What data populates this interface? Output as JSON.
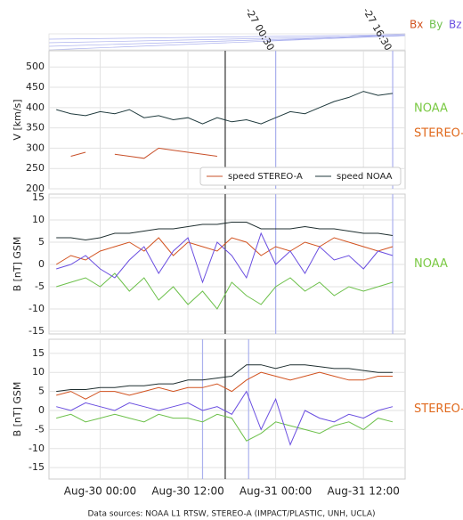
{
  "chart_data": [
    {
      "type": "line",
      "y_label": "V [km/s]",
      "side_label": "NOAA",
      "side_label2": "STEREO-A",
      "x": [
        -6,
        -4,
        -2,
        0,
        2,
        4,
        6,
        8,
        10,
        12,
        14,
        16,
        18,
        20,
        22,
        24,
        26,
        28,
        30,
        32,
        34,
        36,
        38,
        40
      ],
      "xlim": [
        -7,
        41.7
      ],
      "xticks": [
        0,
        12,
        24,
        36
      ],
      "ylim": [
        200,
        540
      ],
      "yticks": [
        200,
        250,
        300,
        350,
        400,
        450,
        500
      ],
      "grid": true,
      "legend": "lower right",
      "series": [
        {
          "name": "speed STEREO-A",
          "color": "#c8502a",
          "values": [
            null,
            280,
            290,
            null,
            285,
            280,
            275,
            300,
            295,
            290,
            285,
            280,
            null,
            null,
            null,
            null,
            null,
            null,
            null,
            null,
            null,
            null,
            null,
            null
          ]
        },
        {
          "name": "speed NOAA",
          "color": "#1f3a3d",
          "values": [
            395,
            385,
            380,
            390,
            385,
            395,
            375,
            380,
            370,
            375,
            360,
            375,
            365,
            370,
            360,
            375,
            390,
            385,
            400,
            415,
            425,
            440,
            430,
            435
          ]
        }
      ],
      "vlines": [
        {
          "x": 17.1,
          "color": "#333333"
        },
        {
          "x": 24,
          "color": "#aab0ee"
        },
        {
          "x": 40,
          "color": "#aab0ee"
        }
      ]
    },
    {
      "type": "line",
      "y_label": "B [nT] GSM",
      "side_label": "NOAA",
      "x": [
        -6,
        -4,
        -2,
        0,
        2,
        4,
        6,
        8,
        10,
        12,
        14,
        16,
        18,
        20,
        22,
        24,
        26,
        28,
        30,
        32,
        34,
        36,
        38,
        40
      ],
      "xlim": [
        -7,
        41.7
      ],
      "xticks": [
        0,
        12,
        24,
        36
      ],
      "ylim": [
        -15.6,
        15.8
      ],
      "yticks": [
        -15,
        -10,
        -5,
        0,
        5,
        10,
        15
      ],
      "grid": true,
      "legend": "top right",
      "series": [
        {
          "color": "#1f2f30",
          "values": [
            6,
            6,
            5.5,
            6,
            7,
            7,
            7.5,
            8,
            8,
            8.5,
            9,
            9,
            9.5,
            9.5,
            8,
            8,
            8,
            8.5,
            8,
            8,
            7.5,
            7,
            7,
            6.5
          ]
        },
        {
          "name": "Bx",
          "color": "#d2521f",
          "values": [
            0,
            2,
            1,
            3,
            4,
            5,
            3,
            6,
            2,
            5,
            4,
            3,
            6,
            5,
            2,
            4,
            3,
            5,
            4,
            6,
            5,
            4,
            3,
            4
          ]
        },
        {
          "name": "By",
          "color": "#6cc04a",
          "values": [
            -5,
            -4,
            -3,
            -5,
            -2,
            -6,
            -3,
            -8,
            -5,
            -9,
            -6,
            -10,
            -4,
            -7,
            -9,
            -5,
            -3,
            -6,
            -4,
            -7,
            -5,
            -6,
            -5,
            -4
          ]
        },
        {
          "name": "Bz",
          "color": "#6a4ee0",
          "values": [
            -1,
            0,
            2,
            -1,
            -3,
            1,
            4,
            -2,
            3,
            6,
            -4,
            5,
            2,
            -3,
            7,
            0,
            3,
            -2,
            4,
            1,
            2,
            -1,
            3,
            2
          ]
        }
      ],
      "vlines": [
        {
          "x": 17.1,
          "color": "#333333"
        },
        {
          "x": 24,
          "color": "#aab0ee"
        },
        {
          "x": 40,
          "color": "#aab0ee"
        }
      ]
    },
    {
      "type": "line",
      "y_label": "B [nT] GSM",
      "side_label": "STEREO-A",
      "x": [
        -6,
        -4,
        -2,
        0,
        2,
        4,
        6,
        8,
        10,
        12,
        14,
        16,
        18,
        20,
        22,
        24,
        26,
        28,
        30,
        32,
        34,
        36,
        38,
        40
      ],
      "xlim": [
        -7,
        41.7
      ],
      "xticks": [
        {
          "value": 0,
          "label": "Aug-30 00:00"
        },
        {
          "value": 12,
          "label": "Aug-30 12:00"
        },
        {
          "value": 24,
          "label": "Aug-31 00:00"
        },
        {
          "value": 36,
          "label": "Aug-31 12:00"
        }
      ],
      "ylim": [
        -18,
        18.7
      ],
      "yticks": [
        -15,
        -10,
        -5,
        0,
        5,
        10,
        15
      ],
      "grid": true,
      "series": [
        {
          "color": "#1f2f30",
          "values": [
            5,
            5.5,
            5.5,
            6,
            6,
            6.5,
            6.5,
            7,
            7,
            8,
            8,
            8.5,
            9,
            12,
            12,
            11,
            12,
            12,
            11.5,
            11,
            11,
            10.5,
            10,
            10
          ]
        },
        {
          "color": "#d2521f",
          "values": [
            4,
            5,
            3,
            5,
            5,
            4,
            5,
            6,
            5,
            6,
            6,
            7,
            5,
            8,
            10,
            9,
            8,
            9,
            10,
            9,
            8,
            8,
            9,
            9
          ]
        },
        {
          "color": "#6cc04a",
          "values": [
            -2,
            -1,
            -3,
            -2,
            -1,
            -2,
            -3,
            -1,
            -2,
            -2,
            -3,
            -1,
            -2,
            -8,
            -6,
            -3,
            -4,
            -5,
            -6,
            -4,
            -3,
            -5,
            -2,
            -3
          ]
        },
        {
          "color": "#6a4ee0",
          "values": [
            1,
            0,
            2,
            1,
            0,
            2,
            1,
            0,
            1,
            2,
            0,
            1,
            -1,
            5,
            -5,
            3,
            -9,
            0,
            -2,
            -3,
            -1,
            -2,
            0,
            1
          ]
        }
      ],
      "vlines": [
        {
          "x": 17.1,
          "color": "#333333"
        },
        {
          "x": 14,
          "color": "#aab0ee"
        },
        {
          "x": 20.3,
          "color": "#aab0ee"
        }
      ]
    }
  ],
  "annotations": [
    "-27 00:30",
    "-27 16:30"
  ],
  "source": "Data sources: NOAA L1 RTSW, STEREO-A (IMPACT/PLASTIC, UNH, UCLA)"
}
